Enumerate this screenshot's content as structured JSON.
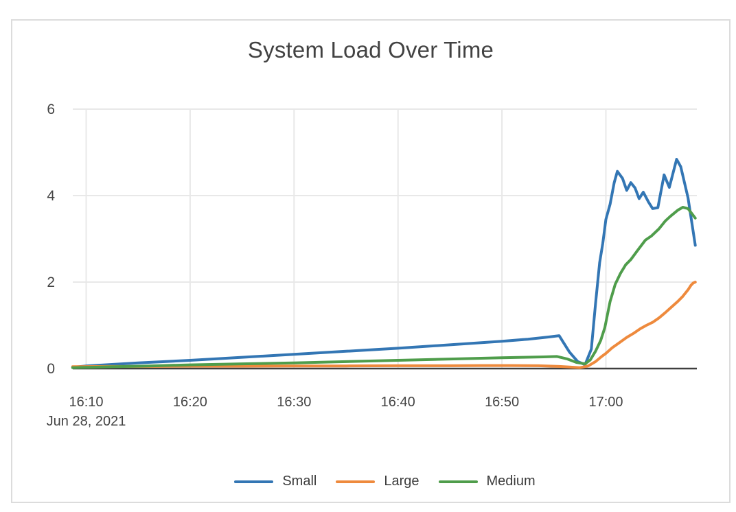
{
  "page": {
    "background_color": "#ffffff",
    "card_border_color": "#dcdcdc"
  },
  "chart_data": {
    "type": "line",
    "title": "System Load Over Time",
    "xlabel": "",
    "ylabel": "",
    "x_axis": {
      "kind": "time",
      "date_label": "Jun 28, 2021",
      "tick_labels": [
        "16:10",
        "16:20",
        "16:30",
        "16:40",
        "16:50",
        "17:00"
      ],
      "tick_minutes_after_1600": [
        10,
        20,
        30,
        40,
        50,
        60
      ],
      "domain_minutes_after_1600": [
        8.7,
        68.6
      ]
    },
    "y_axis": {
      "tick_labels": [
        "0",
        "2",
        "4",
        "6"
      ],
      "tick_values": [
        0,
        2,
        4,
        6
      ],
      "range": [
        0,
        6
      ]
    },
    "grid": {
      "visible": true,
      "grid_color": "#e8e8e8",
      "zero_line_color": "#3f3f3f",
      "tick_text_color": "#444444"
    },
    "legend": {
      "position": "bottom-center",
      "entries": [
        "Small",
        "Large",
        "Medium"
      ]
    },
    "series": [
      {
        "name": "Small",
        "color": "#3376b4",
        "points": [
          [
            8.7,
            0.03
          ],
          [
            10,
            0.06
          ],
          [
            15,
            0.13
          ],
          [
            20,
            0.19
          ],
          [
            25,
            0.26
          ],
          [
            30,
            0.33
          ],
          [
            35,
            0.4
          ],
          [
            40,
            0.47
          ],
          [
            45,
            0.55
          ],
          [
            50,
            0.63
          ],
          [
            52.5,
            0.68
          ],
          [
            54.5,
            0.73
          ],
          [
            55.5,
            0.76
          ],
          [
            56.5,
            0.38
          ],
          [
            57.3,
            0.16
          ],
          [
            58.0,
            0.09
          ],
          [
            58.6,
            0.45
          ],
          [
            59.0,
            1.5
          ],
          [
            59.4,
            2.45
          ],
          [
            59.7,
            2.9
          ],
          [
            60.0,
            3.45
          ],
          [
            60.4,
            3.8
          ],
          [
            60.8,
            4.3
          ],
          [
            61.1,
            4.56
          ],
          [
            61.6,
            4.4
          ],
          [
            62.0,
            4.12
          ],
          [
            62.4,
            4.3
          ],
          [
            62.8,
            4.18
          ],
          [
            63.2,
            3.93
          ],
          [
            63.6,
            4.08
          ],
          [
            64.1,
            3.85
          ],
          [
            64.5,
            3.7
          ],
          [
            65.0,
            3.72
          ],
          [
            65.6,
            4.48
          ],
          [
            66.1,
            4.19
          ],
          [
            66.8,
            4.84
          ],
          [
            67.2,
            4.67
          ],
          [
            67.9,
            3.95
          ],
          [
            68.6,
            2.85
          ]
        ]
      },
      {
        "name": "Large",
        "color": "#ee8a3d",
        "points": [
          [
            8.7,
            0.045
          ],
          [
            12,
            0.05
          ],
          [
            16,
            0.05
          ],
          [
            20,
            0.055
          ],
          [
            25,
            0.055
          ],
          [
            30,
            0.06
          ],
          [
            35,
            0.06
          ],
          [
            40,
            0.065
          ],
          [
            45,
            0.065
          ],
          [
            48,
            0.07
          ],
          [
            51,
            0.07
          ],
          [
            53.5,
            0.065
          ],
          [
            55.5,
            0.05
          ],
          [
            56.5,
            0.035
          ],
          [
            57.5,
            0.02
          ],
          [
            58.3,
            0.06
          ],
          [
            59.0,
            0.16
          ],
          [
            59.6,
            0.28
          ],
          [
            60.0,
            0.35
          ],
          [
            60.6,
            0.48
          ],
          [
            61.3,
            0.6
          ],
          [
            62.0,
            0.72
          ],
          [
            62.7,
            0.82
          ],
          [
            63.3,
            0.92
          ],
          [
            63.9,
            1.0
          ],
          [
            64.5,
            1.07
          ],
          [
            65.1,
            1.17
          ],
          [
            65.7,
            1.29
          ],
          [
            66.3,
            1.42
          ],
          [
            66.9,
            1.55
          ],
          [
            67.4,
            1.67
          ],
          [
            67.9,
            1.82
          ],
          [
            68.2,
            1.93
          ],
          [
            68.4,
            1.98
          ],
          [
            68.6,
            2.0
          ]
        ]
      },
      {
        "name": "Medium",
        "color": "#4f9d4b",
        "points": [
          [
            8.7,
            0.02
          ],
          [
            12,
            0.04
          ],
          [
            16,
            0.06
          ],
          [
            20,
            0.085
          ],
          [
            25,
            0.11
          ],
          [
            30,
            0.13
          ],
          [
            35,
            0.16
          ],
          [
            40,
            0.19
          ],
          [
            45,
            0.22
          ],
          [
            50,
            0.25
          ],
          [
            52,
            0.26
          ],
          [
            54,
            0.27
          ],
          [
            55.3,
            0.28
          ],
          [
            56.3,
            0.22
          ],
          [
            57.2,
            0.14
          ],
          [
            58.0,
            0.11
          ],
          [
            58.5,
            0.2
          ],
          [
            59.0,
            0.4
          ],
          [
            59.5,
            0.65
          ],
          [
            59.9,
            0.95
          ],
          [
            60.4,
            1.55
          ],
          [
            60.9,
            1.95
          ],
          [
            61.4,
            2.2
          ],
          [
            61.9,
            2.4
          ],
          [
            62.4,
            2.52
          ],
          [
            63.1,
            2.75
          ],
          [
            63.8,
            2.97
          ],
          [
            64.4,
            3.07
          ],
          [
            65.1,
            3.23
          ],
          [
            65.7,
            3.41
          ],
          [
            66.2,
            3.52
          ],
          [
            66.9,
            3.66
          ],
          [
            67.4,
            3.73
          ],
          [
            67.9,
            3.7
          ],
          [
            68.6,
            3.48
          ]
        ]
      }
    ],
    "title_color": "#424242"
  }
}
